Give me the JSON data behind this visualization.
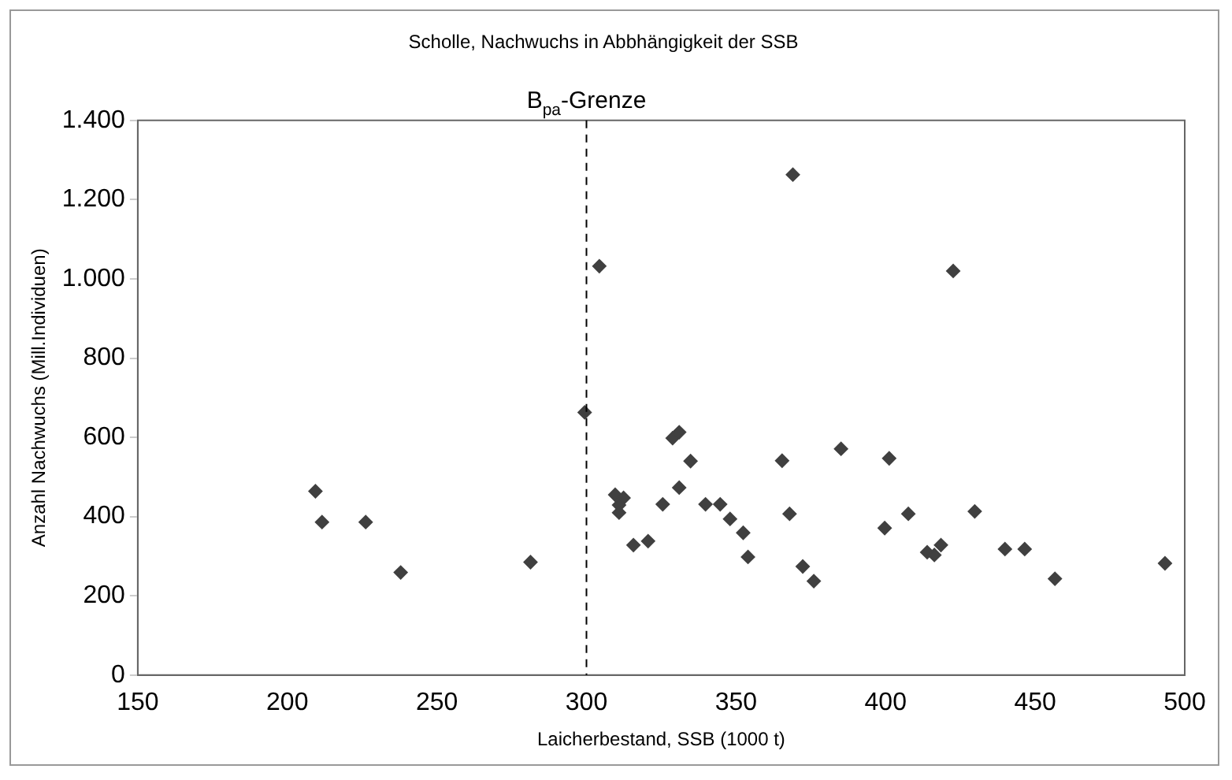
{
  "chart_data": {
    "type": "scatter",
    "title": "Scholle, Nachwuchs in Abbhängigkeit der SSB",
    "xlabel": "Laicherbestand, SSB (1000 t)",
    "ylabel": "Anzahl Nachwuchs (Mill.Individuen)",
    "x": [
      209.4,
      211.6,
      226.2,
      237.9,
      281.3,
      299.4,
      304.3,
      309.6,
      312.4,
      310.9,
      310.9,
      315.7,
      320.6,
      325.5,
      328.8,
      331,
      334.8,
      331,
      339.8,
      344.7,
      348,
      352.4,
      354,
      369,
      365.4,
      367.9,
      372.3,
      376,
      385.1,
      401.2,
      399.7,
      407.6,
      422.6,
      413.9,
      416.3,
      418.5,
      429.8,
      439.9,
      446.5,
      456.6,
      493.4
    ],
    "values": [
      464,
      386,
      386,
      259,
      285,
      663,
      1032,
      455,
      447,
      429,
      410,
      328,
      338,
      431,
      598,
      613,
      540,
      473,
      431,
      431,
      394,
      359,
      298,
      1263,
      541,
      407,
      274,
      237,
      571,
      547,
      371,
      407,
      1020,
      310,
      303,
      328,
      413,
      318,
      318,
      243,
      282
    ],
    "color": "#404040",
    "marker": "diamond",
    "xlim": [
      150,
      500
    ],
    "xticks": [
      150,
      200,
      250,
      300,
      350,
      400,
      450,
      500
    ],
    "ylim": [
      0,
      1400
    ],
    "yticks": [
      0,
      200,
      400,
      600,
      800,
      {
        "value": 1000,
        "label": "1.000"
      },
      {
        "value": 1200,
        "label": "1.200"
      },
      {
        "value": 1400,
        "label": "1.400"
      }
    ],
    "grid": false,
    "legend": false,
    "ref_lines": [
      {
        "axis": "x",
        "value": 300,
        "label": "B$_{pa}$-Grenze",
        "color": "#000000",
        "line_style": "dashed"
      }
    ]
  }
}
